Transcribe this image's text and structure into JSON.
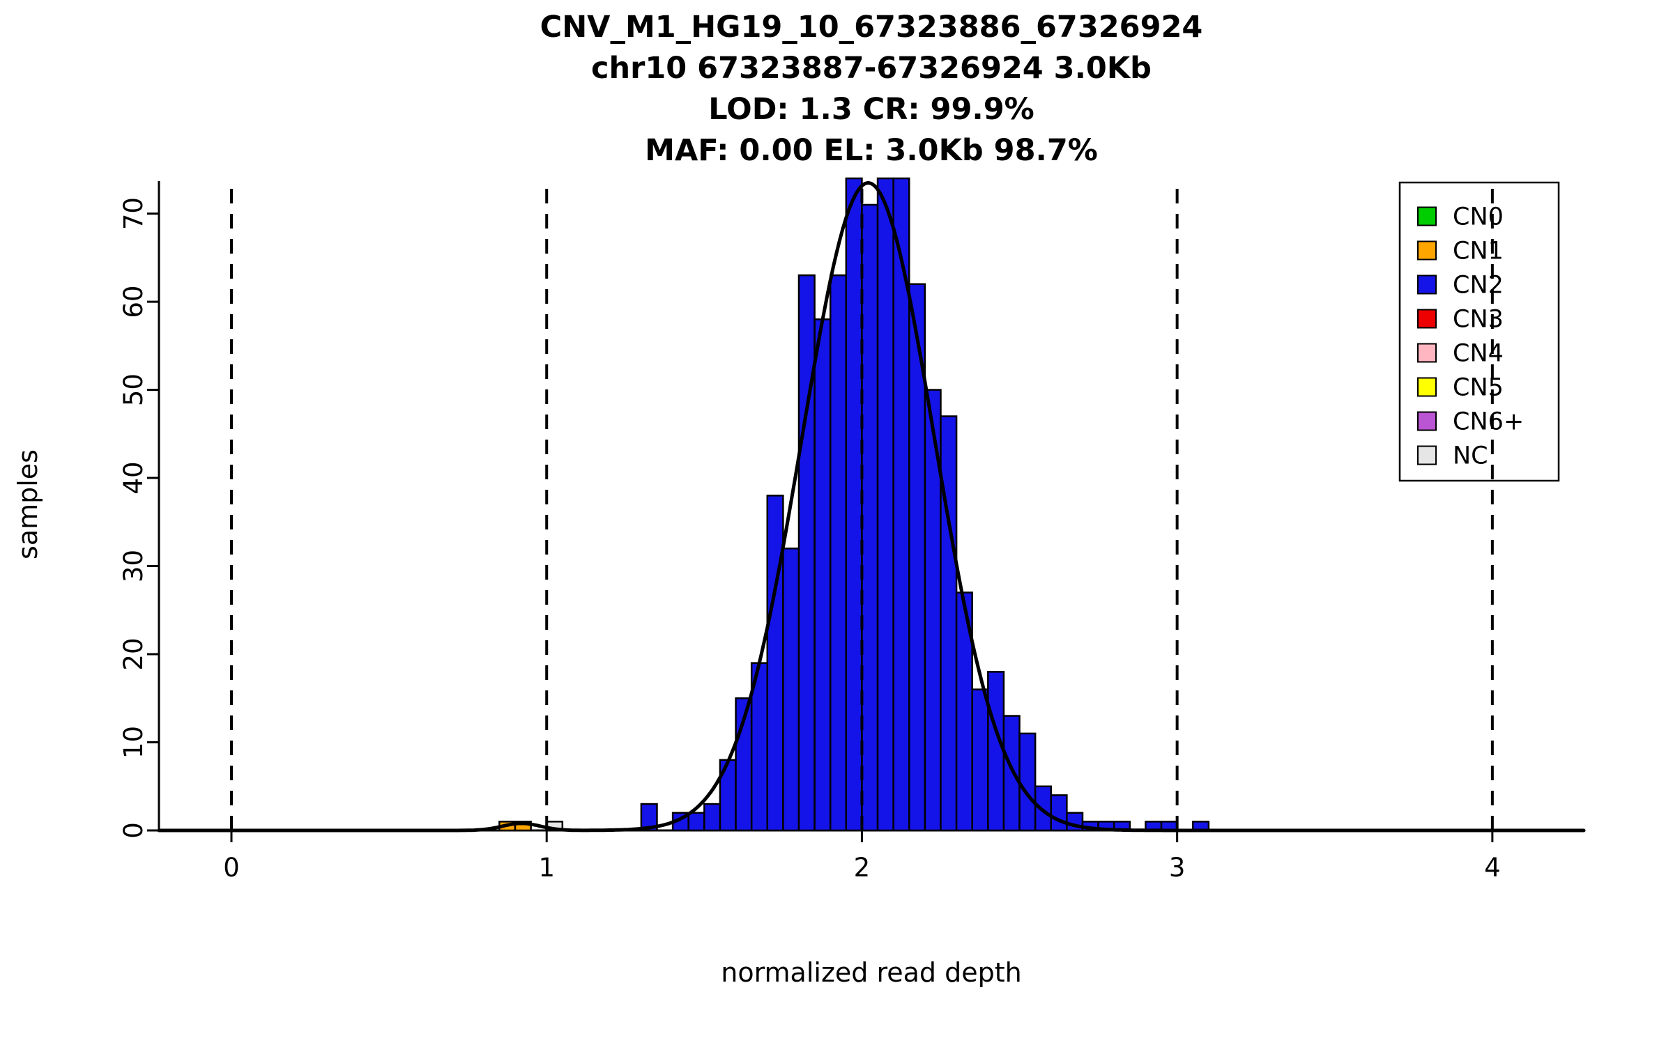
{
  "title": {
    "line1": "CNV_M1_HG19_10_67323886_67326924",
    "line2": "chr10 67323887-67326924 3.0Kb",
    "line3": "LOD: 1.3 CR: 99.9%",
    "line4": "MAF: 0.00 EL: 3.0Kb 98.7%"
  },
  "axes": {
    "xlabel": "normalized read depth",
    "ylabel": "samples"
  },
  "chart_data": {
    "type": "bar",
    "title": "CNV_M1_HG19_10_67323886_67326924",
    "subtitle_lines": [
      "chr10 67323887-67326924 3.0Kb",
      "LOD: 1.3 CR: 99.9%",
      "MAF: 0.00 EL: 3.0Kb 98.7%"
    ],
    "xlabel": "normalized read depth",
    "ylabel": "samples",
    "xlim": [
      -0.23,
      4.29
    ],
    "ylim": [
      0,
      74
    ],
    "xticks": [
      0,
      1,
      2,
      3,
      4
    ],
    "yticks": [
      0,
      10,
      20,
      30,
      40,
      50,
      60,
      70
    ],
    "grid": false,
    "dashed_guides_x": [
      0,
      1,
      2,
      3,
      4
    ],
    "bin_width": 0.05,
    "bars": [
      {
        "x": 0.85,
        "h": 1,
        "cn": "CN1"
      },
      {
        "x": 0.9,
        "h": 1,
        "cn": "CN1"
      },
      {
        "x": 1.0,
        "h": 1,
        "cn": "NC"
      },
      {
        "x": 1.3,
        "h": 3,
        "cn": "CN2"
      },
      {
        "x": 1.4,
        "h": 2,
        "cn": "CN2"
      },
      {
        "x": 1.45,
        "h": 2,
        "cn": "CN2"
      },
      {
        "x": 1.5,
        "h": 3,
        "cn": "CN2"
      },
      {
        "x": 1.55,
        "h": 8,
        "cn": "CN2"
      },
      {
        "x": 1.6,
        "h": 15,
        "cn": "CN2"
      },
      {
        "x": 1.65,
        "h": 19,
        "cn": "CN2"
      },
      {
        "x": 1.7,
        "h": 38,
        "cn": "CN2"
      },
      {
        "x": 1.75,
        "h": 32,
        "cn": "CN2"
      },
      {
        "x": 1.8,
        "h": 63,
        "cn": "CN2"
      },
      {
        "x": 1.85,
        "h": 58,
        "cn": "CN2"
      },
      {
        "x": 1.9,
        "h": 63,
        "cn": "CN2"
      },
      {
        "x": 1.95,
        "h": 74,
        "cn": "CN2"
      },
      {
        "x": 2.0,
        "h": 71,
        "cn": "CN2"
      },
      {
        "x": 2.05,
        "h": 74,
        "cn": "CN2"
      },
      {
        "x": 2.1,
        "h": 74,
        "cn": "CN2"
      },
      {
        "x": 2.15,
        "h": 62,
        "cn": "CN2"
      },
      {
        "x": 2.2,
        "h": 50,
        "cn": "CN2"
      },
      {
        "x": 2.25,
        "h": 47,
        "cn": "CN2"
      },
      {
        "x": 2.3,
        "h": 27,
        "cn": "CN2"
      },
      {
        "x": 2.35,
        "h": 16,
        "cn": "CN2"
      },
      {
        "x": 2.4,
        "h": 18,
        "cn": "CN2"
      },
      {
        "x": 2.45,
        "h": 13,
        "cn": "CN2"
      },
      {
        "x": 2.5,
        "h": 11,
        "cn": "CN2"
      },
      {
        "x": 2.55,
        "h": 5,
        "cn": "CN2"
      },
      {
        "x": 2.6,
        "h": 4,
        "cn": "CN2"
      },
      {
        "x": 2.65,
        "h": 2,
        "cn": "CN2"
      },
      {
        "x": 2.7,
        "h": 1,
        "cn": "CN2"
      },
      {
        "x": 2.75,
        "h": 1,
        "cn": "CN2"
      },
      {
        "x": 2.8,
        "h": 1,
        "cn": "CN2"
      },
      {
        "x": 2.9,
        "h": 1,
        "cn": "CN2"
      },
      {
        "x": 2.95,
        "h": 1,
        "cn": "CN2"
      },
      {
        "x": 3.05,
        "h": 1,
        "cn": "CN2"
      }
    ],
    "fit_curve": {
      "color": "#000000",
      "width": 5,
      "components": [
        {
          "mean": 2.02,
          "sd": 0.21,
          "amplitude": 73.5
        },
        {
          "mean": 0.92,
          "sd": 0.06,
          "amplitude": 0.8
        }
      ]
    },
    "legend": {
      "position": "top-right",
      "items": [
        {
          "label": "CN0",
          "color": "#00CD00"
        },
        {
          "label": "CN1",
          "color": "#FFA500"
        },
        {
          "label": "CN2",
          "color": "#1414E8"
        },
        {
          "label": "CN3",
          "color": "#EE0000"
        },
        {
          "label": "CN4",
          "color": "#FFB6C1"
        },
        {
          "label": "CN5",
          "color": "#FFFF00"
        },
        {
          "label": "CN6+",
          "color": "#BA55D3"
        },
        {
          "label": "NC",
          "color": "#E6E6E6"
        }
      ]
    },
    "colors": {
      "CN0": "#00CD00",
      "CN1": "#FFA500",
      "CN2": "#1414E8",
      "CN3": "#EE0000",
      "CN4": "#FFB6C1",
      "CN5": "#FFFF00",
      "CN6+": "#BA55D3",
      "NC": "#E6E6E6"
    }
  }
}
